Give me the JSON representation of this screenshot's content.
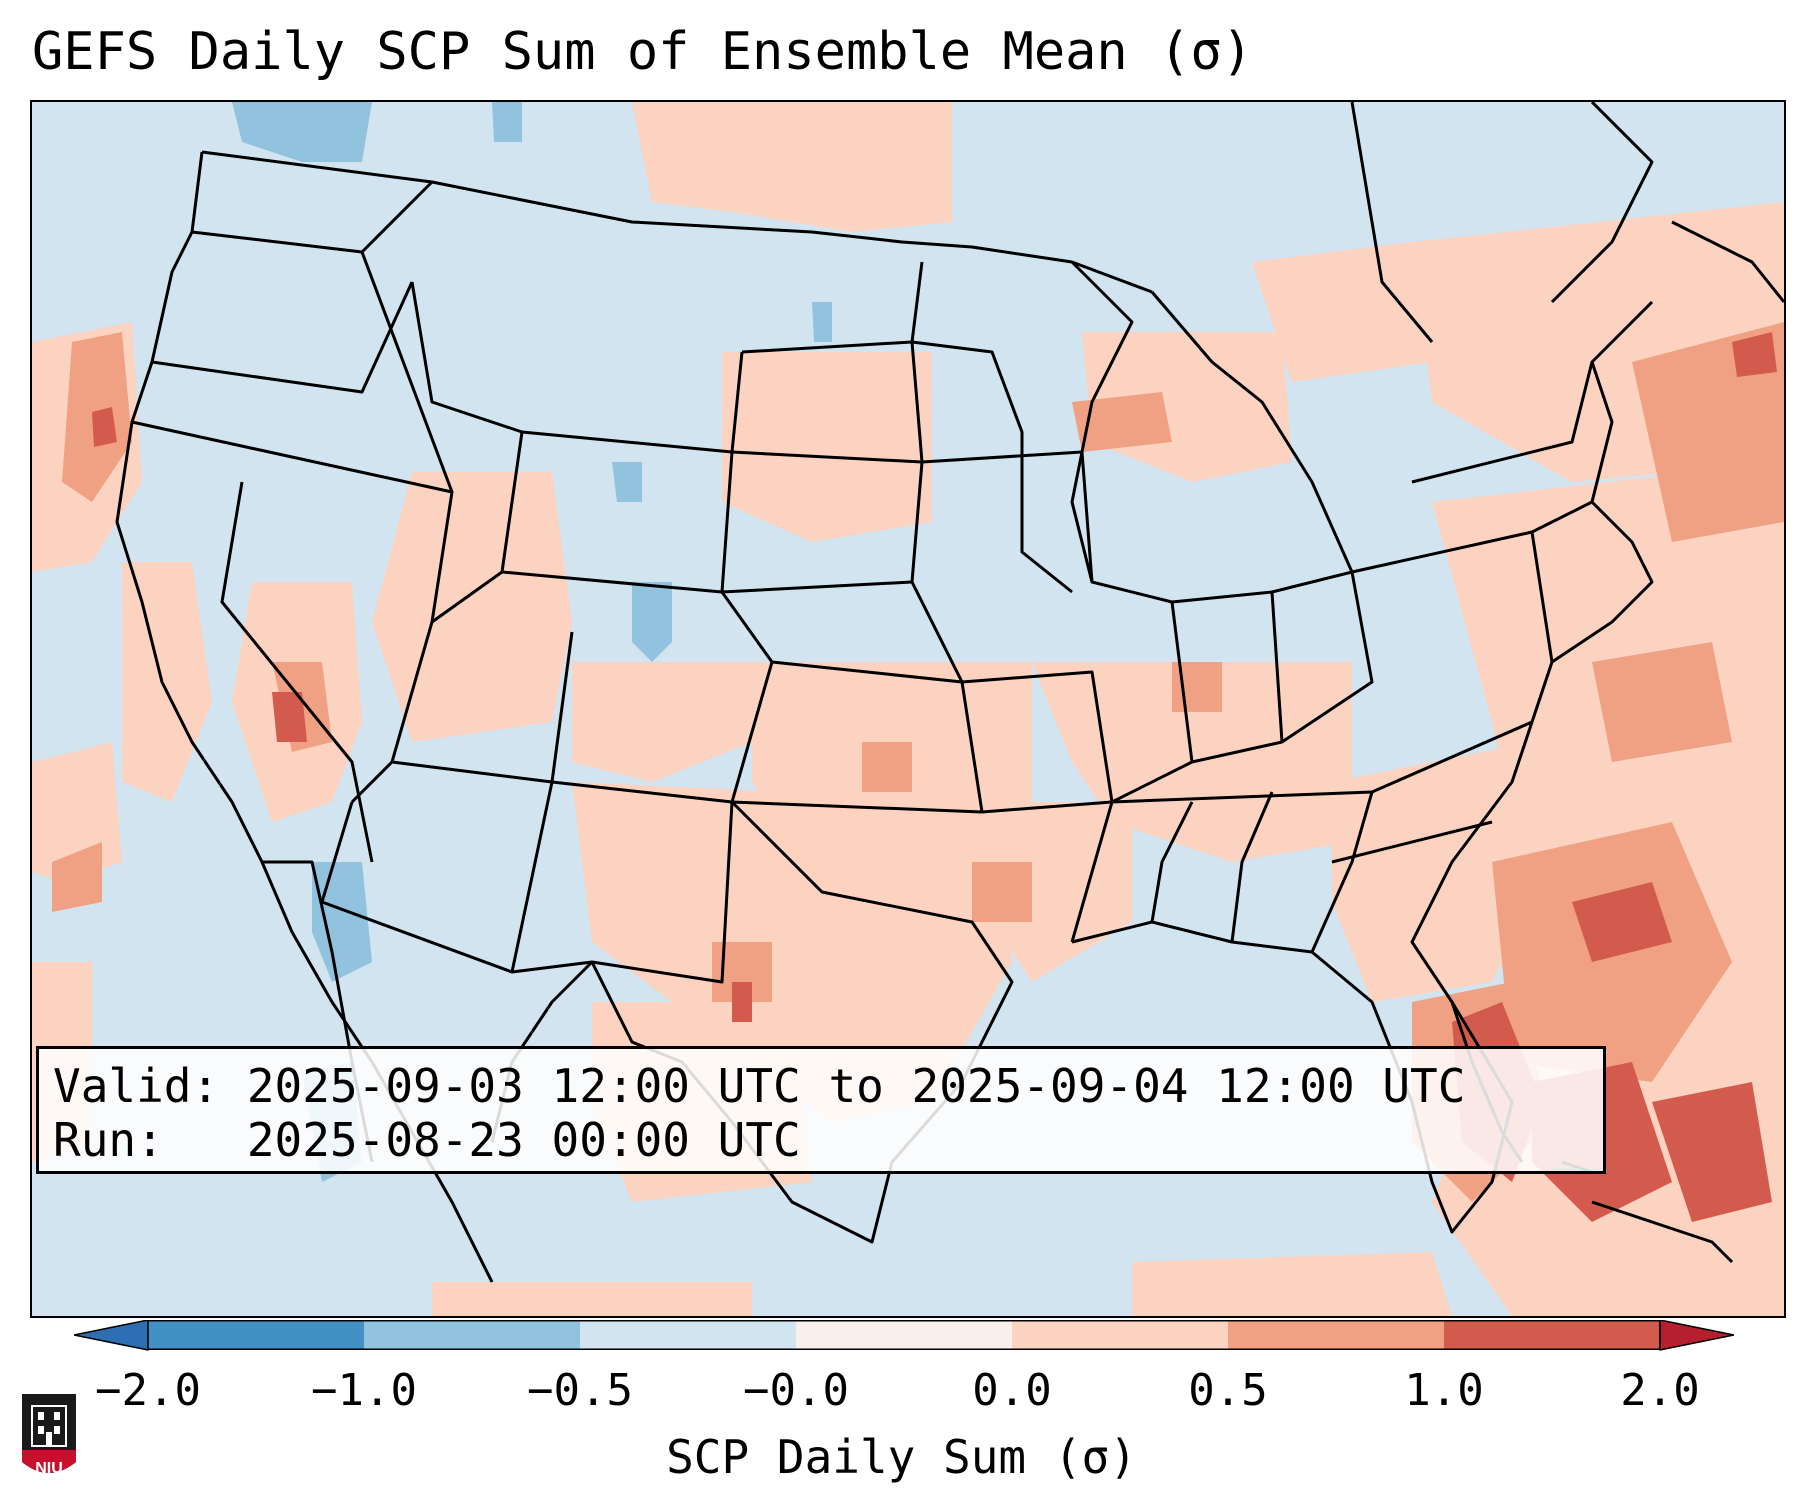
{
  "title": "GEFS Daily SCP Sum of Ensemble Mean (σ)",
  "info": {
    "valid_line": "Valid: 2025-09-03 12:00 UTC to 2025-09-04 12:00 UTC",
    "run_line": "Run:   2025-08-23 00:00 UTC"
  },
  "colorbar": {
    "label": "SCP Daily Sum (σ)",
    "ticks": [
      "−2.0",
      "−1.0",
      "−0.5",
      "−0.0",
      "0.0",
      "0.5",
      "1.0",
      "2.0"
    ],
    "colors": {
      "under": "#2e6fb4",
      "bin1": "#4391c4",
      "bin2": "#91c3df",
      "bin3": "#d2e4f0",
      "bin4": "#f9f0ec",
      "bin5": "#fbd3c0",
      "bin6": "#f0a183",
      "bin7": "#d35b4d",
      "over": "#b51f2e"
    }
  },
  "map": {
    "background_color": "#d2e4f0",
    "categories": {
      "light_blue": "#d2e4f0",
      "mid_blue": "#91c3df",
      "light_red": "#fbd3c0",
      "mid_red": "#f0a183",
      "dark_red": "#d35b4d"
    }
  },
  "logo": {
    "text": "NIU",
    "color": "#c8102e"
  }
}
